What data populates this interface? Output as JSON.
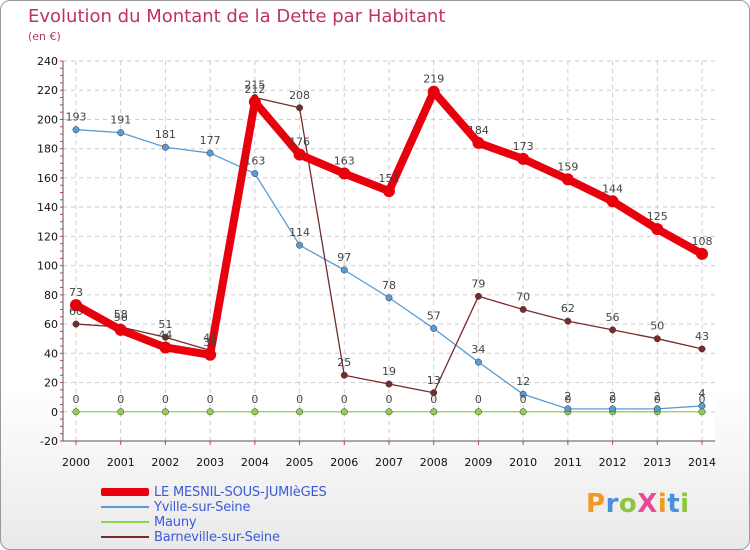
{
  "title": "Evolution du Montant de la Dette par Habitant",
  "subtitle": "(en €)",
  "brand": "ProXiti",
  "chart_data": {
    "type": "line",
    "title": "Evolution du Montant de la Dette par Habitant",
    "subtitle": "(en €)",
    "x": [
      2000,
      2001,
      2002,
      2003,
      2004,
      2005,
      2006,
      2007,
      2008,
      2009,
      2010,
      2011,
      2012,
      2013,
      2014
    ],
    "ylim": [
      -20,
      240
    ],
    "yticks": [
      -20,
      0,
      20,
      40,
      60,
      80,
      100,
      120,
      140,
      160,
      180,
      200,
      220,
      240
    ],
    "grid": true,
    "legend_position": "bottom-left",
    "series": [
      {
        "name": "LE MESNIL-SOUS-JUMIèGES",
        "color": "#e8000c",
        "values": [
          73,
          56,
          44,
          39,
          212,
          176,
          163,
          151,
          219,
          184,
          173,
          159,
          144,
          125,
          108
        ]
      },
      {
        "name": "Yville-sur-Seine",
        "color": "#5b9bd5",
        "values": [
          193,
          191,
          181,
          177,
          163,
          114,
          97,
          78,
          57,
          34,
          12,
          2,
          2,
          2,
          4
        ]
      },
      {
        "name": "Mauny",
        "color": "#8ed44a",
        "values": [
          0,
          0,
          0,
          0,
          0,
          0,
          0,
          0,
          0,
          0,
          0,
          0,
          0,
          0,
          0
        ]
      },
      {
        "name": "Barneville-sur-Seine",
        "color": "#7a2a2a",
        "values": [
          60,
          58,
          51,
          42,
          215,
          208,
          25,
          19,
          13,
          79,
          70,
          62,
          56,
          50,
          43
        ]
      }
    ]
  }
}
